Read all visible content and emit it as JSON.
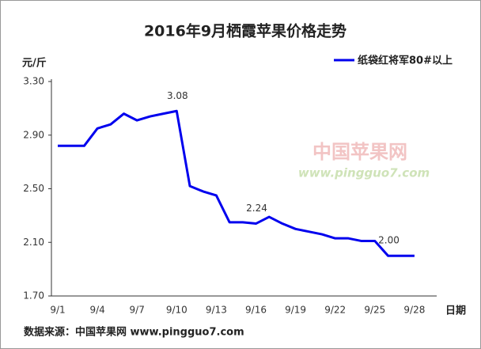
{
  "chart_data": {
    "type": "line",
    "title": "2016年9月栖霞苹果价格走势",
    "y_unit_label": "元/斤",
    "x_label": "日期",
    "source": "数据来源：中国苹果网 www.pingguo7.com",
    "watermark": [
      "中国苹果网",
      "www.pingguo7.com"
    ],
    "categories": [
      "9/1",
      null,
      null,
      "9/4",
      null,
      null,
      "9/7",
      null,
      null,
      "9/10",
      null,
      null,
      "9/13",
      null,
      null,
      "9/16",
      null,
      null,
      "9/19",
      null,
      null,
      "9/22",
      null,
      null,
      "9/25",
      null,
      null,
      "9/28"
    ],
    "series": [
      {
        "name": "纸袋红将军80#以上",
        "color": "#0000ee",
        "values": [
          2.82,
          2.82,
          2.82,
          2.95,
          2.98,
          3.06,
          3.01,
          3.04,
          3.06,
          3.08,
          2.52,
          2.48,
          2.45,
          2.25,
          2.25,
          2.24,
          2.29,
          2.24,
          2.2,
          2.18,
          2.16,
          2.13,
          2.13,
          2.11,
          2.11,
          2.0,
          2.0,
          2.0
        ],
        "value_labels": [
          null,
          null,
          null,
          null,
          null,
          null,
          null,
          null,
          null,
          "3.08",
          null,
          null,
          null,
          null,
          null,
          "2.24",
          null,
          null,
          null,
          null,
          null,
          null,
          null,
          null,
          null,
          "2.00",
          null,
          null
        ]
      }
    ],
    "ylim": [
      1.7,
      3.3
    ],
    "yticks": [
      {
        "value": 1.7,
        "label": "1.70"
      },
      {
        "value": 2.1,
        "label": "2.10"
      },
      {
        "value": 2.5,
        "label": "2.50"
      },
      {
        "value": 2.9,
        "label": "2.90"
      },
      {
        "value": 3.3,
        "label": "3.30"
      }
    ],
    "legend": "top-right"
  }
}
